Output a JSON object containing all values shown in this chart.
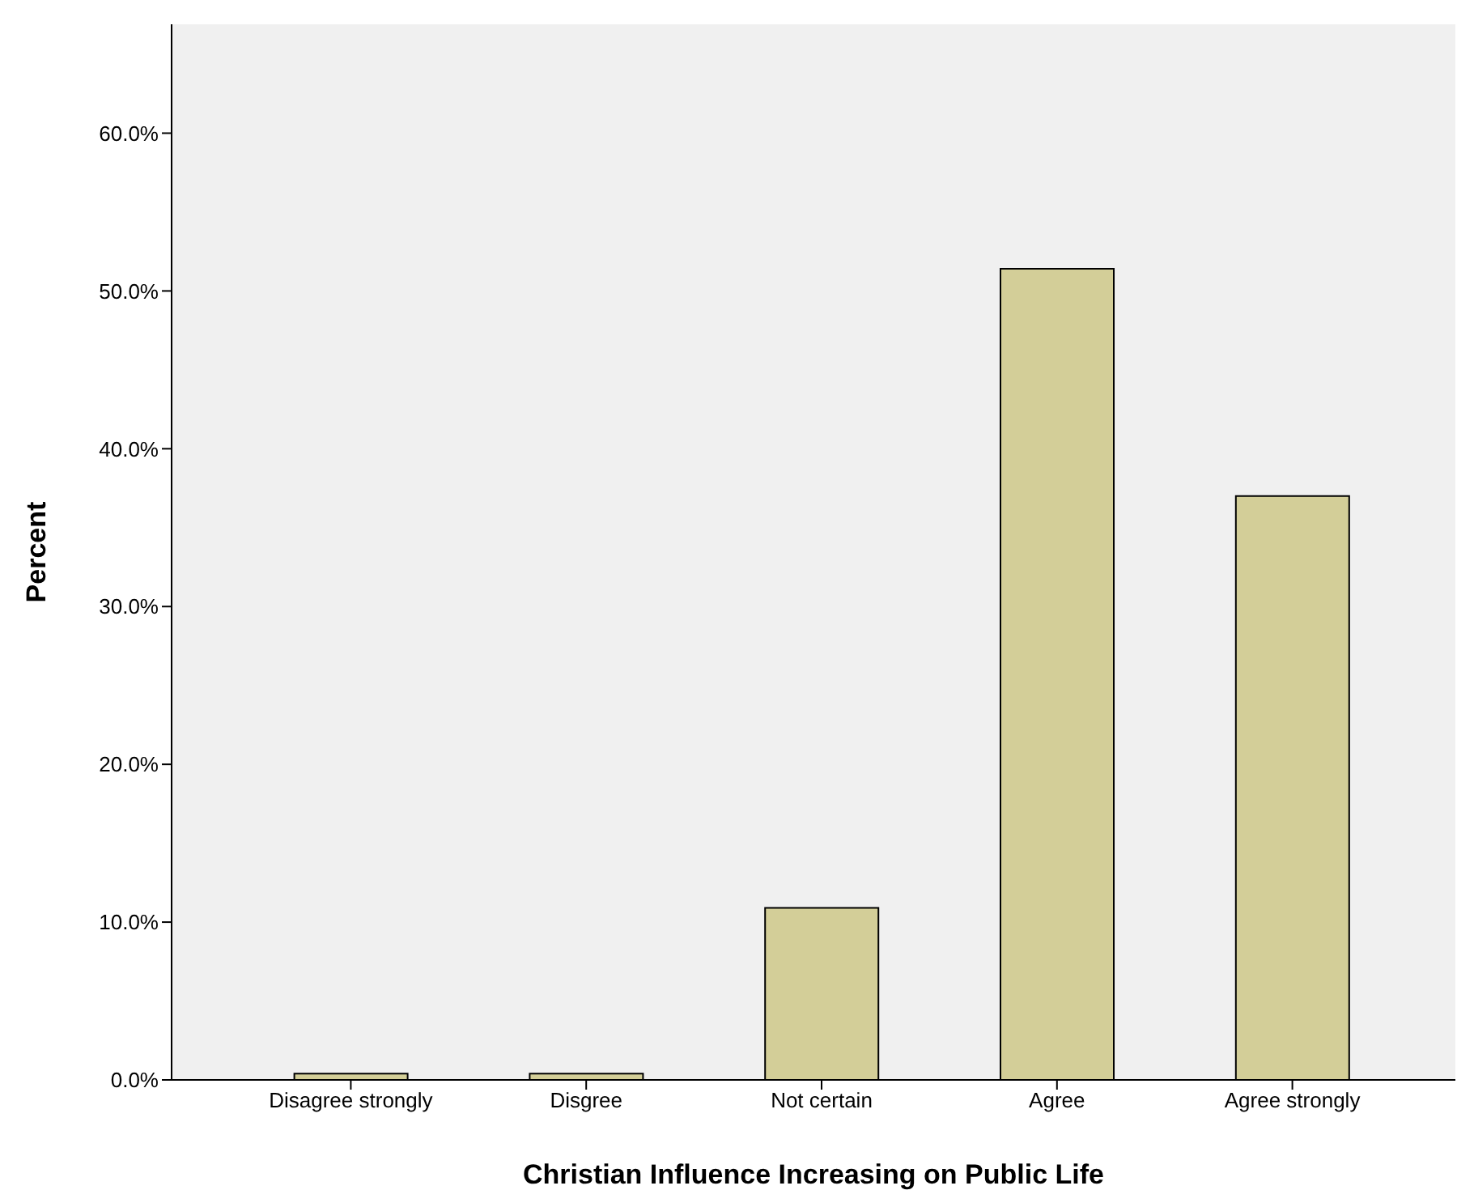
{
  "chart_data": {
    "type": "bar",
    "xlabel": "Christian Influence Increasing on Public Life",
    "ylabel": "Percent",
    "categories": [
      "Disagree strongly",
      "Disgree",
      "Not certain",
      "Agree",
      "Agree strongly"
    ],
    "values": [
      0.4,
      0.4,
      10.9,
      51.4,
      37.0
    ],
    "color": "#d3ce98",
    "ylim": [
      0,
      66.9
    ],
    "yticks": [
      {
        "value": 0,
        "label": "0.0%"
      },
      {
        "value": 10,
        "label": "10.0%"
      },
      {
        "value": 20,
        "label": "20.0%"
      },
      {
        "value": 30,
        "label": "30.0%"
      },
      {
        "value": 40,
        "label": "40.0%"
      },
      {
        "value": 50,
        "label": "50.0%"
      },
      {
        "value": 60,
        "label": "60.0%"
      }
    ],
    "grid": false,
    "legend": false
  }
}
